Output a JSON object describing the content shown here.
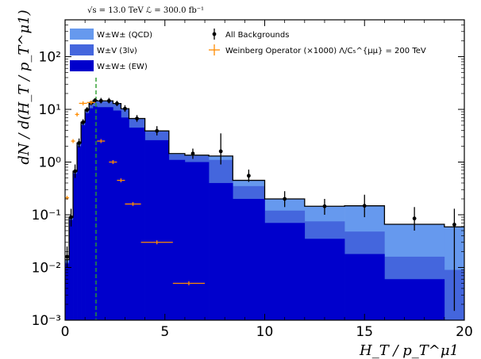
{
  "chart_data": {
    "type": "histogram",
    "header": "√s = 13.0 TeV  ℒ = 300.0 fb⁻¹",
    "xlabel": "H_T / p_T^μ1",
    "ylabel": "dN / d(H_T / p_T^μ1)",
    "xlim": [
      0,
      20
    ],
    "ylim": [
      0.001,
      500
    ],
    "yscale": "log",
    "x_ticks": [
      0,
      5,
      10,
      15,
      20
    ],
    "x_tick_labels": [
      "0",
      "5",
      "10",
      "15",
      "20"
    ],
    "y_ticks": [
      0.001,
      0.01,
      0.1,
      1,
      10,
      100
    ],
    "y_tick_labels": [
      "10⁻³",
      "10⁻²",
      "10⁻¹",
      "10⁰",
      "10¹",
      "10²"
    ],
    "bin_edges": [
      0,
      0.2,
      0.4,
      0.6,
      0.8,
      1.0,
      1.2,
      1.4,
      1.6,
      2.0,
      2.4,
      2.8,
      3.2,
      4.0,
      5.2,
      6.0,
      7.2,
      8.4,
      10.0,
      12.0,
      14.0,
      16.0,
      19.0,
      20.0
    ],
    "vline_x": 1.55,
    "series": [
      {
        "name": "W±W± (EW)",
        "color": "#0000cc",
        "values": [
          0.012,
          0.08,
          0.6,
          2.0,
          5.0,
          8.5,
          10.5,
          11.5,
          11.0,
          11.0,
          9.5,
          7.0,
          4.5,
          2.6,
          1.1,
          1.0,
          0.4,
          0.2,
          0.07,
          0.035,
          0.018,
          0.006,
          0.001
        ]
      },
      {
        "name": "W±V (3lν)",
        "color": "#4466dd",
        "values": [
          0.001,
          0.005,
          0.05,
          0.2,
          0.5,
          1.0,
          2.0,
          2.5,
          3.0,
          3.0,
          3.0,
          3.0,
          2.0,
          1.2,
          0.3,
          0.3,
          0.7,
          0.15,
          0.05,
          0.04,
          0.03,
          0.01,
          0.008
        ]
      },
      {
        "name": "W±W± (QCD)",
        "color": "#6699ee",
        "values": [
          0.001,
          0.005,
          0.02,
          0.1,
          0.2,
          0.3,
          0.6,
          0.8,
          0.5,
          0.5,
          0.4,
          0.3,
          0.2,
          0.1,
          0.05,
          0.05,
          0.2,
          0.1,
          0.08,
          0.07,
          0.1,
          0.05,
          0.05
        ]
      }
    ],
    "all_backgrounds": {
      "name": "All Backgrounds",
      "color": "#000000",
      "points": [
        {
          "x": 0.1,
          "y": 0.016,
          "ylo": 0.01,
          "yhi": 0.025
        },
        {
          "x": 0.3,
          "y": 0.09,
          "ylo": 0.06,
          "yhi": 0.13
        },
        {
          "x": 0.5,
          "y": 0.67,
          "ylo": 0.5,
          "yhi": 0.9
        },
        {
          "x": 0.7,
          "y": 2.3,
          "ylo": 1.9,
          "yhi": 2.8
        },
        {
          "x": 0.9,
          "y": 5.7,
          "ylo": 5.0,
          "yhi": 6.5
        },
        {
          "x": 1.1,
          "y": 9.8,
          "ylo": 8.8,
          "yhi": 11.0
        },
        {
          "x": 1.3,
          "y": 13.1,
          "ylo": 12.0,
          "yhi": 14.5
        },
        {
          "x": 1.5,
          "y": 14.8,
          "ylo": 13.5,
          "yhi": 16.2
        },
        {
          "x": 1.8,
          "y": 14.5,
          "ylo": 13.0,
          "yhi": 16.5
        },
        {
          "x": 2.2,
          "y": 14.5,
          "ylo": 13.0,
          "yhi": 16.5
        },
        {
          "x": 2.6,
          "y": 12.9,
          "ylo": 11.5,
          "yhi": 14.5
        },
        {
          "x": 3.0,
          "y": 10.3,
          "ylo": 9.0,
          "yhi": 12.0
        },
        {
          "x": 3.6,
          "y": 6.7,
          "ylo": 5.8,
          "yhi": 7.8
        },
        {
          "x": 4.6,
          "y": 3.9,
          "ylo": 3.2,
          "yhi": 4.8
        },
        {
          "x": 6.4,
          "y": 1.45,
          "ylo": 1.15,
          "yhi": 1.8
        },
        {
          "x": 7.8,
          "y": 1.6,
          "ylo": 0.9,
          "yhi": 3.5
        },
        {
          "x": 9.2,
          "y": 0.55,
          "ylo": 0.42,
          "yhi": 0.72
        },
        {
          "x": 11.0,
          "y": 0.2,
          "ylo": 0.14,
          "yhi": 0.28
        },
        {
          "x": 13.0,
          "y": 0.145,
          "ylo": 0.1,
          "yhi": 0.2
        },
        {
          "x": 15.0,
          "y": 0.148,
          "ylo": 0.09,
          "yhi": 0.24
        },
        {
          "x": 17.5,
          "y": 0.085,
          "ylo": 0.05,
          "yhi": 0.14
        },
        {
          "x": 19.5,
          "y": 0.065,
          "ylo": 0.0015,
          "yhi": 0.13
        }
      ]
    },
    "signal": {
      "name": "Weinberg Operator (×1000) Λ/C₅^{μμ} = 200 TeV",
      "color": "#ff8c00",
      "points": [
        {
          "x": 0.1,
          "y": 0.21
        },
        {
          "x": 0.4,
          "y": 2.5
        },
        {
          "x": 0.6,
          "y": 8.0
        },
        {
          "x": 0.9,
          "y": 13.0
        },
        {
          "x": 1.3,
          "y": 13.5
        },
        {
          "x": 1.8,
          "y": 2.5
        },
        {
          "x": 2.4,
          "y": 1.0
        },
        {
          "x": 2.8,
          "y": 0.45
        },
        {
          "x": 3.4,
          "y": 0.16
        },
        {
          "x": 4.6,
          "y": 0.03
        },
        {
          "x": 6.2,
          "y": 0.005
        }
      ],
      "xerr": [
        0.1,
        0.1,
        0.1,
        0.2,
        0.2,
        0.2,
        0.2,
        0.2,
        0.4,
        0.8,
        0.8
      ]
    },
    "legend_left": [
      "W±W± (QCD)",
      "W±V (3lν)",
      "W±W± (EW)"
    ],
    "legend_right": [
      "All Backgrounds",
      "Weinberg Operator (×1000) Λ/C₅^{μμ} = 200 TeV"
    ]
  }
}
